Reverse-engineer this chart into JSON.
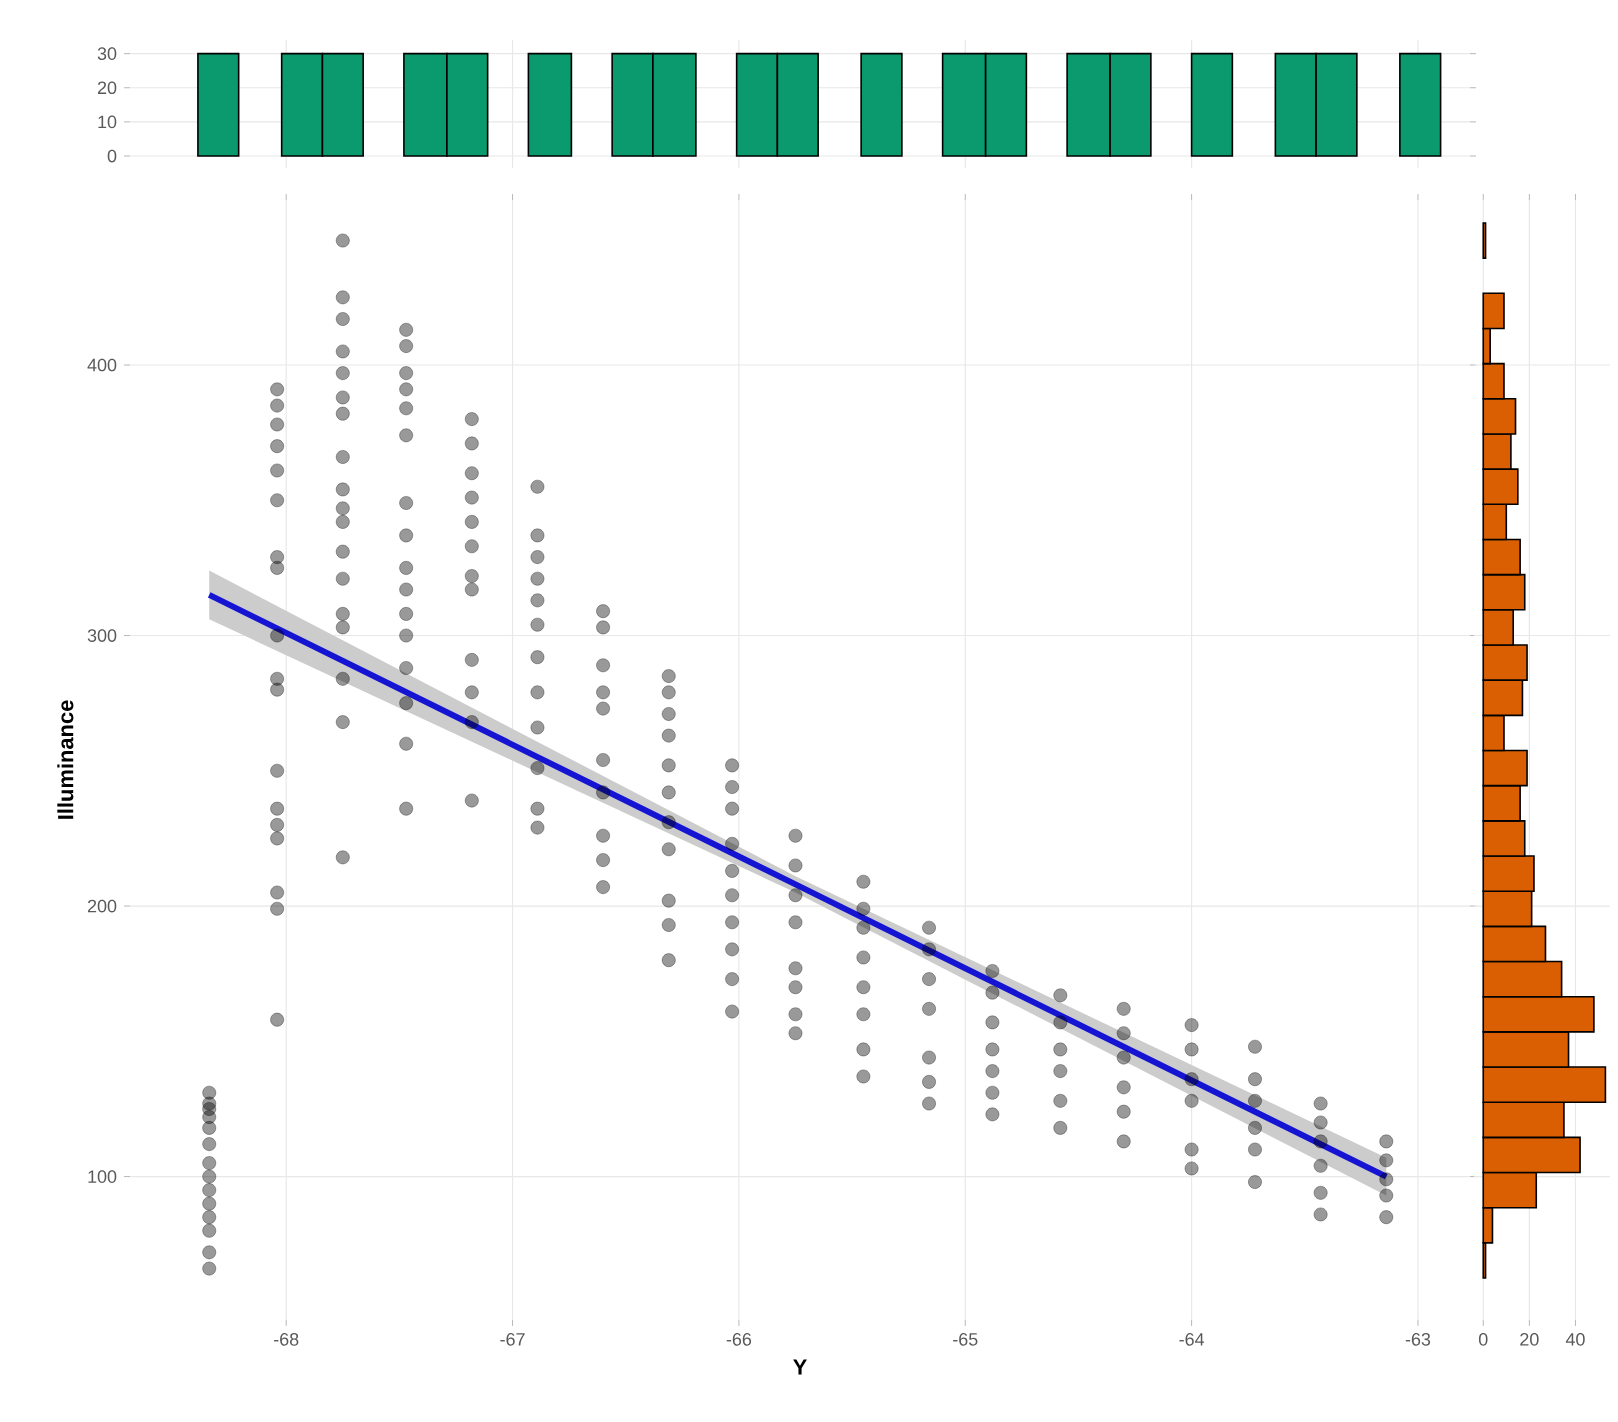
{
  "chart_data": [
    {
      "type": "histogram",
      "color": "#0a9a6e",
      "bins": [
        -68.39,
        -68.21,
        -68.02,
        -67.84,
        -67.66,
        -67.48,
        -67.29,
        -67.11,
        -66.93,
        -66.74,
        -66.56,
        -66.38,
        -66.19,
        -66.01,
        -65.83,
        -65.65,
        -65.46,
        -65.28,
        -65.1,
        -64.91,
        -64.73,
        -64.55,
        -64.36,
        -64.18,
        -64.0,
        -63.82,
        -63.63,
        -63.45,
        -63.27,
        -63.08,
        -62.9
      ],
      "values": [
        30,
        0,
        30,
        30,
        0,
        30,
        30,
        0,
        30,
        0,
        30,
        30,
        0,
        30,
        30,
        0,
        30,
        0,
        30,
        30,
        0,
        30,
        30,
        0,
        30,
        0,
        30,
        30,
        0,
        30
      ],
      "xlim": [
        -68.69,
        -62.77
      ],
      "xticks": [
        -68,
        -67,
        -66,
        -65,
        -64,
        -63
      ],
      "ylim": [
        -3.5,
        34
      ],
      "yticks": [
        0,
        10,
        20,
        30
      ],
      "grid": true,
      "tick_labels": "y"
    },
    {
      "type": "scatter",
      "xlabel": "Y",
      "ylabel": "Illuminance",
      "xlim": [
        -68.69,
        -62.77
      ],
      "ylim": [
        47,
        461
      ],
      "xticks": [
        -68,
        -67,
        -66,
        -65,
        -64,
        -63
      ],
      "yticks": [
        100,
        200,
        300,
        400
      ],
      "grid": true,
      "series": [
        {
          "type": "scatter",
          "color": "#000000",
          "marker": "circle",
          "x": [
            -68.34,
            -68.34,
            -68.34,
            -68.34,
            -68.34,
            -68.34,
            -68.34,
            -68.34,
            -68.34,
            -68.34,
            -68.34,
            -68.34,
            -68.34,
            -68.34,
            -68.04,
            -68.04,
            -68.04,
            -68.04,
            -68.04,
            -68.04,
            -68.04,
            -68.04,
            -68.04,
            -68.04,
            -68.04,
            -68.04,
            -68.04,
            -68.04,
            -68.04,
            -68.04,
            -68.04,
            -68.04,
            -67.75,
            -67.75,
            -67.75,
            -67.75,
            -67.75,
            -67.75,
            -67.75,
            -67.75,
            -67.75,
            -67.75,
            -67.75,
            -67.75,
            -67.75,
            -67.75,
            -67.75,
            -67.75,
            -67.75,
            -67.75,
            -67.47,
            -67.47,
            -67.47,
            -67.47,
            -67.47,
            -67.47,
            -67.47,
            -67.47,
            -67.47,
            -67.47,
            -67.47,
            -67.47,
            -67.47,
            -67.47,
            -67.47,
            -67.47,
            -67.18,
            -67.18,
            -67.18,
            -67.18,
            -67.18,
            -67.18,
            -67.18,
            -67.18,
            -67.18,
            -67.18,
            -67.18,
            -67.18,
            -66.89,
            -66.89,
            -66.89,
            -66.89,
            -66.89,
            -66.89,
            -66.89,
            -66.89,
            -66.89,
            -66.89,
            -66.89,
            -66.89,
            -66.6,
            -66.6,
            -66.6,
            -66.6,
            -66.6,
            -66.6,
            -66.6,
            -66.6,
            -66.6,
            -66.6,
            -66.31,
            -66.31,
            -66.31,
            -66.31,
            -66.31,
            -66.31,
            -66.31,
            -66.31,
            -66.31,
            -66.31,
            -66.31,
            -66.03,
            -66.03,
            -66.03,
            -66.03,
            -66.03,
            -66.03,
            -66.03,
            -66.03,
            -66.03,
            -66.03,
            -65.75,
            -65.75,
            -65.75,
            -65.75,
            -65.75,
            -65.75,
            -65.75,
            -65.75,
            -65.45,
            -65.45,
            -65.45,
            -65.45,
            -65.45,
            -65.45,
            -65.45,
            -65.45,
            -65.16,
            -65.16,
            -65.16,
            -65.16,
            -65.16,
            -65.16,
            -65.16,
            -64.88,
            -64.88,
            -64.88,
            -64.88,
            -64.88,
            -64.88,
            -64.88,
            -64.58,
            -64.58,
            -64.58,
            -64.58,
            -64.58,
            -64.58,
            -64.3,
            -64.3,
            -64.3,
            -64.3,
            -64.3,
            -64.3,
            -64.0,
            -64.0,
            -64.0,
            -64.0,
            -64.0,
            -64.0,
            -63.72,
            -63.72,
            -63.72,
            -63.72,
            -63.72,
            -63.72,
            -63.43,
            -63.43,
            -63.43,
            -63.43,
            -63.43,
            -63.43,
            -63.14,
            -63.14,
            -63.14,
            -63.14,
            -63.14
          ],
          "values": [
            131,
            127,
            125,
            122,
            118,
            112,
            105,
            100,
            95,
            90,
            85,
            80,
            72,
            66,
            391,
            385,
            378,
            370,
            361,
            350,
            329,
            325,
            300,
            284,
            280,
            250,
            236,
            230,
            225,
            205,
            199,
            158,
            446,
            425,
            417,
            405,
            397,
            388,
            382,
            366,
            354,
            347,
            342,
            331,
            321,
            308,
            303,
            284,
            268,
            218,
            413,
            407,
            397,
            391,
            384,
            374,
            349,
            337,
            325,
            317,
            308,
            300,
            288,
            275,
            260,
            236,
            380,
            371,
            360,
            351,
            342,
            333,
            322,
            317,
            291,
            279,
            268,
            239,
            355,
            337,
            329,
            321,
            313,
            304,
            292,
            279,
            266,
            251,
            236,
            229,
            309,
            303,
            289,
            279,
            273,
            254,
            242,
            226,
            217,
            207,
            285,
            279,
            271,
            263,
            252,
            242,
            231,
            221,
            202,
            193,
            180,
            252,
            244,
            236,
            223,
            213,
            204,
            194,
            184,
            173,
            161,
            226,
            215,
            204,
            194,
            177,
            170,
            160,
            153,
            209,
            199,
            192,
            181,
            170,
            160,
            147,
            137,
            192,
            184,
            173,
            162,
            144,
            135,
            127,
            176,
            168,
            157,
            147,
            139,
            131,
            123,
            167,
            157,
            147,
            139,
            128,
            118,
            162,
            153,
            144,
            133,
            124,
            113,
            156,
            147,
            136,
            128,
            110,
            103,
            148,
            136,
            128,
            118,
            110,
            98,
            127,
            120,
            113,
            104,
            94,
            86,
            113,
            106,
            99,
            93,
            85
          ]
        },
        {
          "type": "line",
          "color": "#1414d2",
          "x": [
            -68.34,
            -65.75,
            -63.14
          ],
          "values": [
            315,
            208,
            100
          ],
          "lower": [
            306,
            205,
            93
          ],
          "upper": [
            324,
            211,
            107
          ]
        }
      ]
    },
    {
      "type": "histogram",
      "orientation": "horizontal",
      "color": "#d95f02",
      "bins": [
        62.5,
        75.5,
        88.5,
        101.5,
        114.5,
        127.5,
        140.5,
        153.5,
        166.5,
        179.5,
        192.5,
        205.5,
        218.5,
        231.5,
        244.5,
        257.5,
        270.5,
        283.5,
        296.5,
        309.5,
        322.5,
        335.5,
        348.5,
        361.5,
        374.5,
        387.5,
        400.5,
        413.5,
        426.5,
        439.5,
        452.5
      ],
      "values": [
        1,
        4,
        23,
        42,
        35,
        53,
        37,
        48,
        34,
        27,
        21,
        22,
        18,
        16,
        19,
        9,
        17,
        19,
        13,
        18,
        16,
        10,
        15,
        12,
        14,
        9,
        3,
        9,
        0,
        1
      ],
      "xlim": [
        -4,
        55
      ],
      "xticks": [
        0,
        20,
        40
      ],
      "ylim": [
        47,
        461
      ],
      "yticks": [
        100,
        200,
        300,
        400
      ],
      "grid": true,
      "tick_labels": "x"
    }
  ]
}
